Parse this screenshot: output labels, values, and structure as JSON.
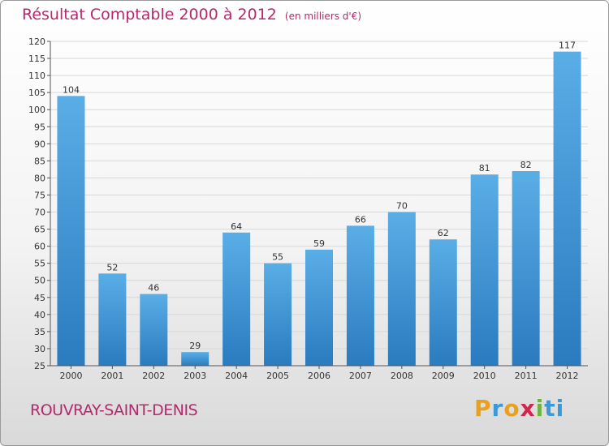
{
  "header": {
    "title": "Résultat Comptable 2000 à 2012",
    "subtitle": "(en milliers d'€)"
  },
  "footer": {
    "place": "ROUVRAY-SAINT-DENIS",
    "logo": [
      "P",
      "r",
      "o",
      "x",
      "i",
      "ti"
    ]
  },
  "colors": {
    "bar_top": "#5aaee6",
    "bar_bottom": "#2a7bbf",
    "title": "#b5296b",
    "grid": "#d8d8d8"
  },
  "chart_data": {
    "type": "bar",
    "title": "Résultat Comptable 2000 à 2012",
    "xlabel": "",
    "ylabel": "",
    "ylim": [
      25,
      120
    ],
    "ytick_step": 5,
    "grid": true,
    "categories": [
      "2000",
      "2001",
      "2002",
      "2003",
      "2004",
      "2005",
      "2006",
      "2007",
      "2008",
      "2009",
      "2010",
      "2011",
      "2012"
    ],
    "values": [
      104,
      52,
      46,
      29,
      64,
      55,
      59,
      66,
      70,
      62,
      81,
      82,
      117
    ]
  }
}
